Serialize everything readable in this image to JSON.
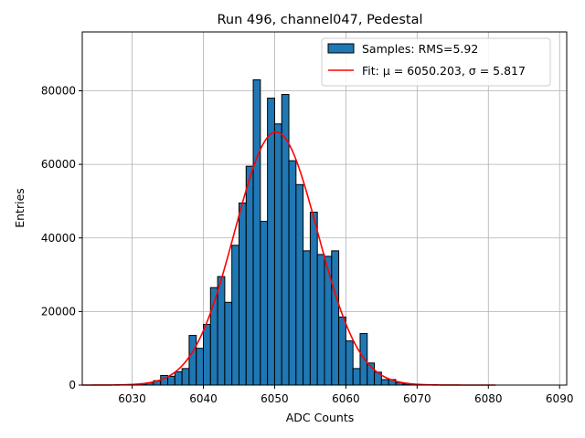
{
  "chart_data": {
    "type": "bar",
    "title": "Run 496, channel047, Pedestal",
    "xlabel": "ADC Counts",
    "ylabel": "Entries",
    "xlim": [
      6023,
      6091
    ],
    "ylim": [
      0,
      96000
    ],
    "xticks": [
      6030,
      6040,
      6050,
      6060,
      6070,
      6080,
      6090
    ],
    "yticks": [
      0,
      20000,
      40000,
      60000,
      80000
    ],
    "grid": true,
    "legend_position": "top-right",
    "hist_color": "#1f77b4",
    "fit_color": "#ff0000",
    "histogram": {
      "name": "Samples: RMS=5.92",
      "bin_width": 1,
      "bin_starts": [
        6030,
        6031,
        6032,
        6033,
        6034,
        6035,
        6036,
        6037,
        6038,
        6039,
        6040,
        6041,
        6042,
        6043,
        6044,
        6045,
        6046,
        6047,
        6048,
        6049,
        6050,
        6051,
        6052,
        6053,
        6054,
        6055,
        6056,
        6057,
        6058,
        6059,
        6060,
        6061,
        6062,
        6063,
        6064,
        6065,
        6066,
        6067,
        6068,
        6069
      ],
      "values": [
        100,
        300,
        600,
        1200,
        2600,
        2400,
        3600,
        4500,
        13500,
        10000,
        16500,
        26500,
        29500,
        22500,
        38000,
        49500,
        59500,
        83000,
        44500,
        78000,
        71000,
        79000,
        61000,
        54500,
        36500,
        47000,
        35500,
        35000,
        36500,
        18500,
        12000,
        4500,
        14000,
        6000,
        3500,
        1500,
        1500,
        700,
        300,
        100
      ]
    },
    "fit": {
      "name": "Fit: μ = 6050.203, σ = 5.817",
      "mu": 6050.203,
      "sigma": 5.817,
      "amplitude": 68800,
      "x_range": [
        6023,
        6081
      ]
    }
  }
}
